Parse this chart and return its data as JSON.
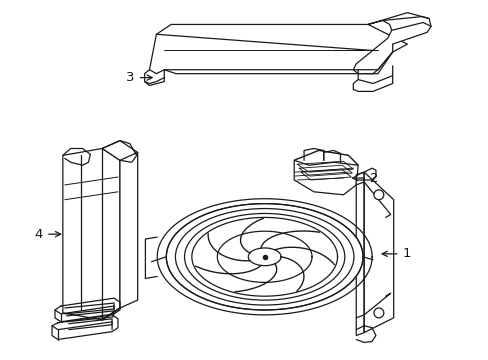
{
  "background_color": "#ffffff",
  "line_color": "#1a1a1a",
  "line_width": 0.9,
  "figsize": [
    4.89,
    3.6
  ],
  "dpi": 100
}
